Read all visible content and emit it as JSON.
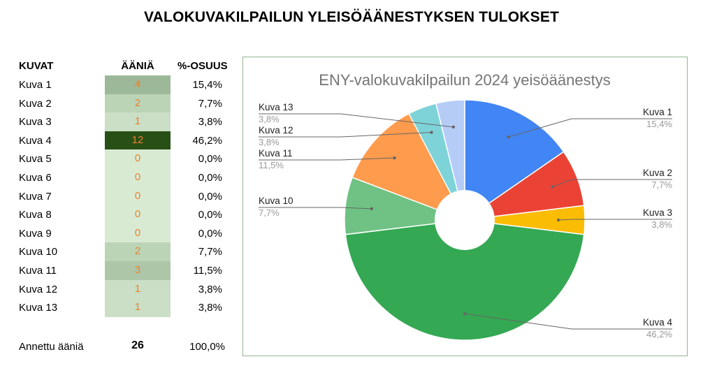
{
  "title": "VALOKUVAKILPAILUN YLEISÖÄÄNESTYKSEN TULOKSET",
  "table": {
    "headers": {
      "name": "KUVAT",
      "votes": "ÄÄNIÄ",
      "pct": "%-OSUUS"
    },
    "rows": [
      {
        "name": "Kuva 1",
        "votes": "4",
        "pct": "15,4%",
        "bg": "#9cb898"
      },
      {
        "name": "Kuva 2",
        "votes": "2",
        "pct": "7,7%",
        "bg": "#bcd4b6"
      },
      {
        "name": "Kuva 3",
        "votes": "1",
        "pct": "3,8%",
        "bg": "#cbdec6"
      },
      {
        "name": "Kuva 4",
        "votes": "12",
        "pct": "46,2%",
        "bg": "#284f15"
      },
      {
        "name": "Kuva 5",
        "votes": "0",
        "pct": "0,0%",
        "bg": "#d9ead3"
      },
      {
        "name": "Kuva 6",
        "votes": "0",
        "pct": "0,0%",
        "bg": "#d9ead3"
      },
      {
        "name": "Kuva 7",
        "votes": "0",
        "pct": "0,0%",
        "bg": "#d9ead3"
      },
      {
        "name": "Kuva 8",
        "votes": "0",
        "pct": "0,0%",
        "bg": "#d9ead3"
      },
      {
        "name": "Kuva 9",
        "votes": "0",
        "pct": "0,0%",
        "bg": "#d9ead3"
      },
      {
        "name": "Kuva 10",
        "votes": "2",
        "pct": "7,7%",
        "bg": "#bcd4b6"
      },
      {
        "name": "Kuva 11",
        "votes": "3",
        "pct": "11,5%",
        "bg": "#adc6a7"
      },
      {
        "name": "Kuva 12",
        "votes": "1",
        "pct": "3,8%",
        "bg": "#cbdec6"
      },
      {
        "name": "Kuva 13",
        "votes": "1",
        "pct": "3,8%",
        "bg": "#cbdec6"
      }
    ],
    "total": {
      "label": "Annettu ääniä",
      "votes": "26",
      "pct": "100,0%"
    }
  },
  "chart_data": {
    "type": "pie",
    "title": "ENY-valokuvakilpailun 2024 yeisöäänestys",
    "donut": true,
    "categories": [
      "Kuva 1",
      "Kuva 2",
      "Kuva 3",
      "Kuva 4",
      "Kuva 10",
      "Kuva 11",
      "Kuva 12",
      "Kuva 13"
    ],
    "values": [
      4,
      2,
      1,
      12,
      2,
      3,
      1,
      1
    ],
    "percent_labels": [
      "15,4%",
      "7,7%",
      "3,8%",
      "46,2%",
      "7,7%",
      "11,5%",
      "3,8%",
      "3,8%"
    ],
    "colors": [
      "#4285f4",
      "#ea4335",
      "#fbbc04",
      "#34a853",
      "#6fc283",
      "#ff9b4d",
      "#7ed3d8",
      "#b5cdf6"
    ],
    "legend": "none"
  }
}
